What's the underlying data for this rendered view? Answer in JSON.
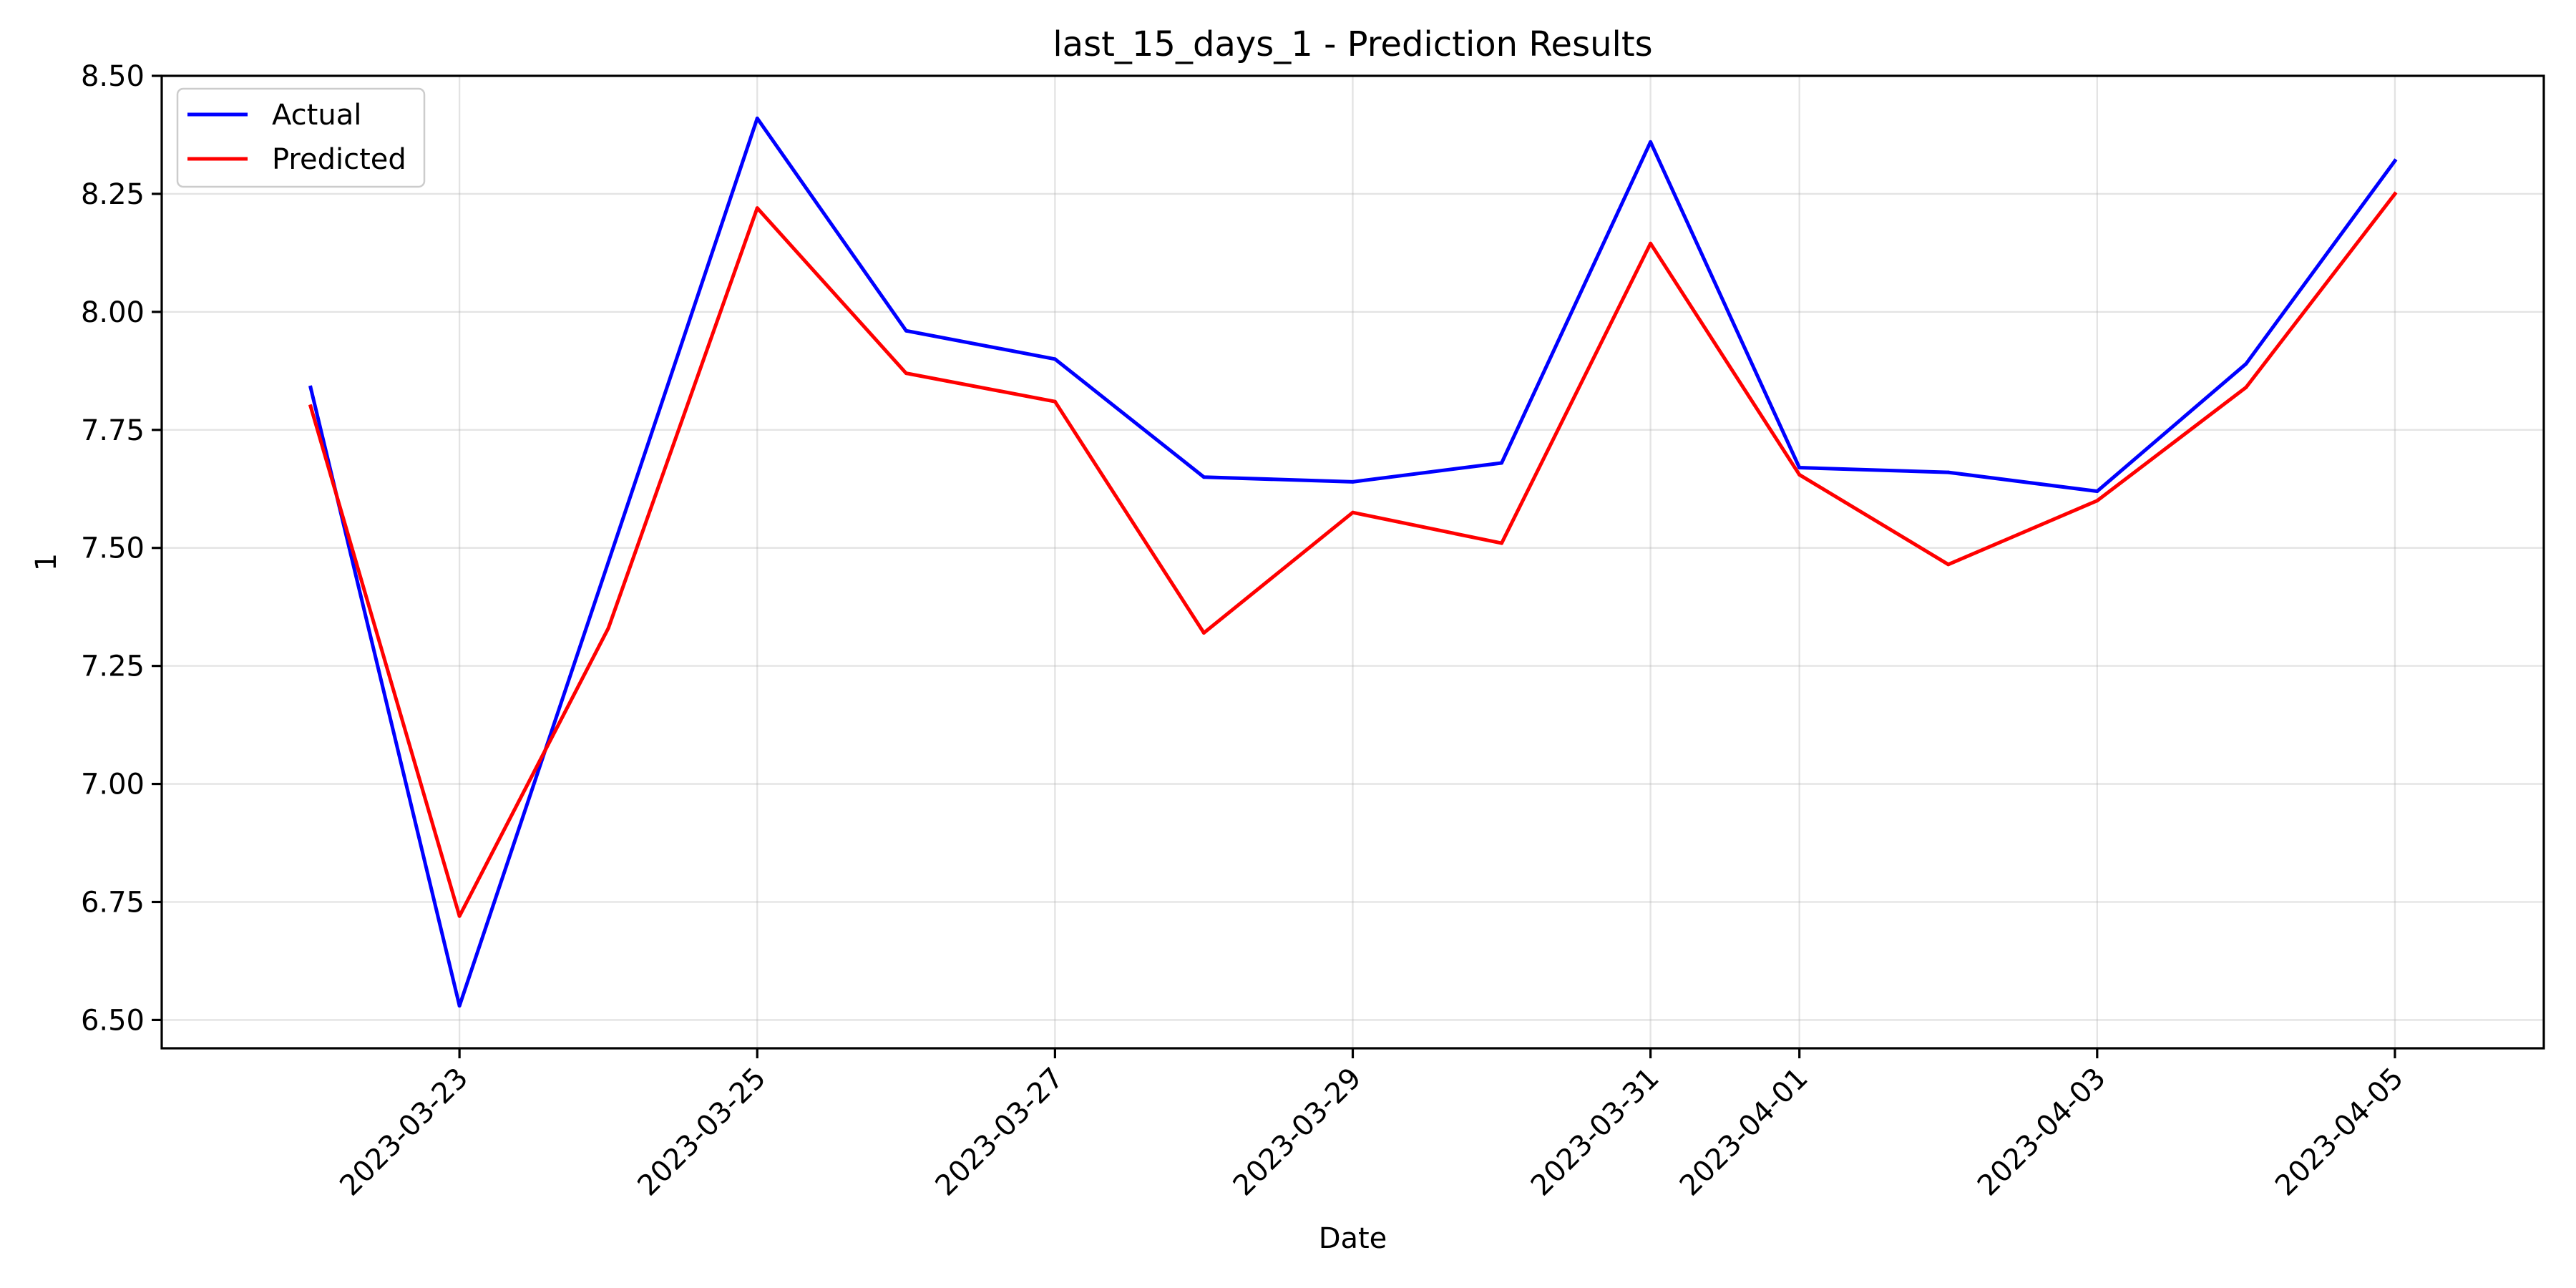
{
  "chart_data": {
    "type": "line",
    "title": "last_15_days_1 - Prediction Results",
    "xlabel": "Date",
    "ylabel": "1",
    "x": [
      "2023-03-22",
      "2023-03-23",
      "2023-03-24",
      "2023-03-25",
      "2023-03-26",
      "2023-03-27",
      "2023-03-28",
      "2023-03-29",
      "2023-03-30",
      "2023-03-31",
      "2023-04-01",
      "2023-04-02",
      "2023-04-03",
      "2023-04-04",
      "2023-04-05"
    ],
    "x_tick_labels": [
      "2023-03-23",
      "2023-03-25",
      "2023-03-27",
      "2023-03-29",
      "2023-03-31",
      "2023-04-01",
      "2023-04-03",
      "2023-04-05"
    ],
    "xlim": [
      "2023-03-21",
      "2023-04-06"
    ],
    "ylim": [
      6.44,
      8.5
    ],
    "y_ticks": [
      "6.50",
      "6.75",
      "7.00",
      "7.25",
      "7.50",
      "7.75",
      "8.00",
      "8.25",
      "8.50"
    ],
    "grid": true,
    "legend_position": "upper-left",
    "series": [
      {
        "name": "Actual",
        "color": "#0000ff",
        "values": [
          7.84,
          6.53,
          7.47,
          8.41,
          7.96,
          7.9,
          7.65,
          7.64,
          7.68,
          8.36,
          7.67,
          7.66,
          7.62,
          7.89,
          8.32
        ]
      },
      {
        "name": "Predicted",
        "color": "#ff0000",
        "values": [
          7.8,
          6.72,
          7.33,
          8.22,
          7.87,
          7.81,
          7.32,
          7.575,
          7.51,
          8.145,
          7.655,
          7.465,
          7.6,
          7.84,
          8.25
        ]
      }
    ]
  }
}
